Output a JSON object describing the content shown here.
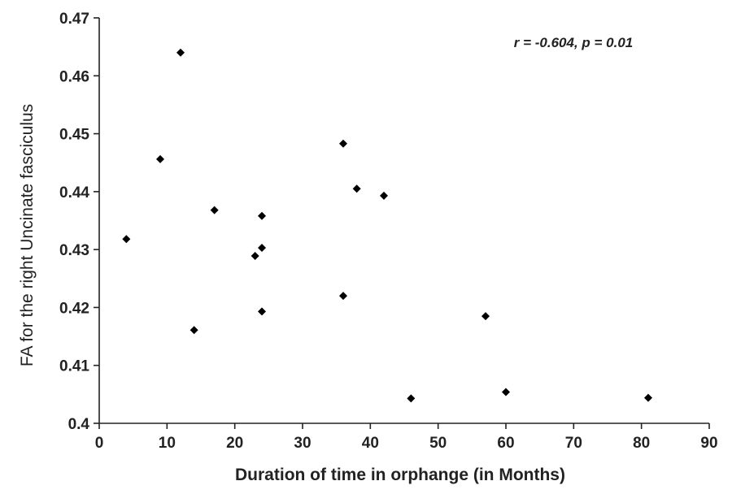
{
  "chart_data": {
    "type": "scatter",
    "title": "",
    "xlabel": "Duration of time in orphange (in Months)",
    "ylabel": "FA for the right Uncinate fasciculus",
    "annotation": "r = -0.604, p = 0.01",
    "xlim": [
      0,
      90
    ],
    "ylim": [
      0.4,
      0.47
    ],
    "x_ticks": [
      0,
      10,
      20,
      30,
      40,
      50,
      60,
      70,
      80,
      90
    ],
    "y_ticks": [
      0.4,
      0.41,
      0.42,
      0.43,
      0.44,
      0.45,
      0.46,
      0.47
    ],
    "x_tick_labels": [
      "0",
      "10",
      "20",
      "30",
      "40",
      "50",
      "60",
      "70",
      "80",
      "90"
    ],
    "y_tick_labels": [
      "0.4",
      "0.41",
      "0.42",
      "0.43",
      "0.44",
      "0.45",
      "0.46",
      "0.47"
    ],
    "grid": false,
    "legend": "none",
    "marker": "diamond",
    "marker_color": "#000000",
    "points": [
      {
        "x": 4,
        "y": 0.4318
      },
      {
        "x": 9,
        "y": 0.4456
      },
      {
        "x": 12,
        "y": 0.464
      },
      {
        "x": 14,
        "y": 0.4161
      },
      {
        "x": 17,
        "y": 0.4368
      },
      {
        "x": 23,
        "y": 0.4289
      },
      {
        "x": 24,
        "y": 0.4358
      },
      {
        "x": 24,
        "y": 0.4303
      },
      {
        "x": 24,
        "y": 0.4193
      },
      {
        "x": 36,
        "y": 0.4483
      },
      {
        "x": 36,
        "y": 0.422
      },
      {
        "x": 38,
        "y": 0.4405
      },
      {
        "x": 42,
        "y": 0.4393
      },
      {
        "x": 46,
        "y": 0.4043
      },
      {
        "x": 57,
        "y": 0.4185
      },
      {
        "x": 60,
        "y": 0.4054
      },
      {
        "x": 81,
        "y": 0.4044
      }
    ]
  }
}
